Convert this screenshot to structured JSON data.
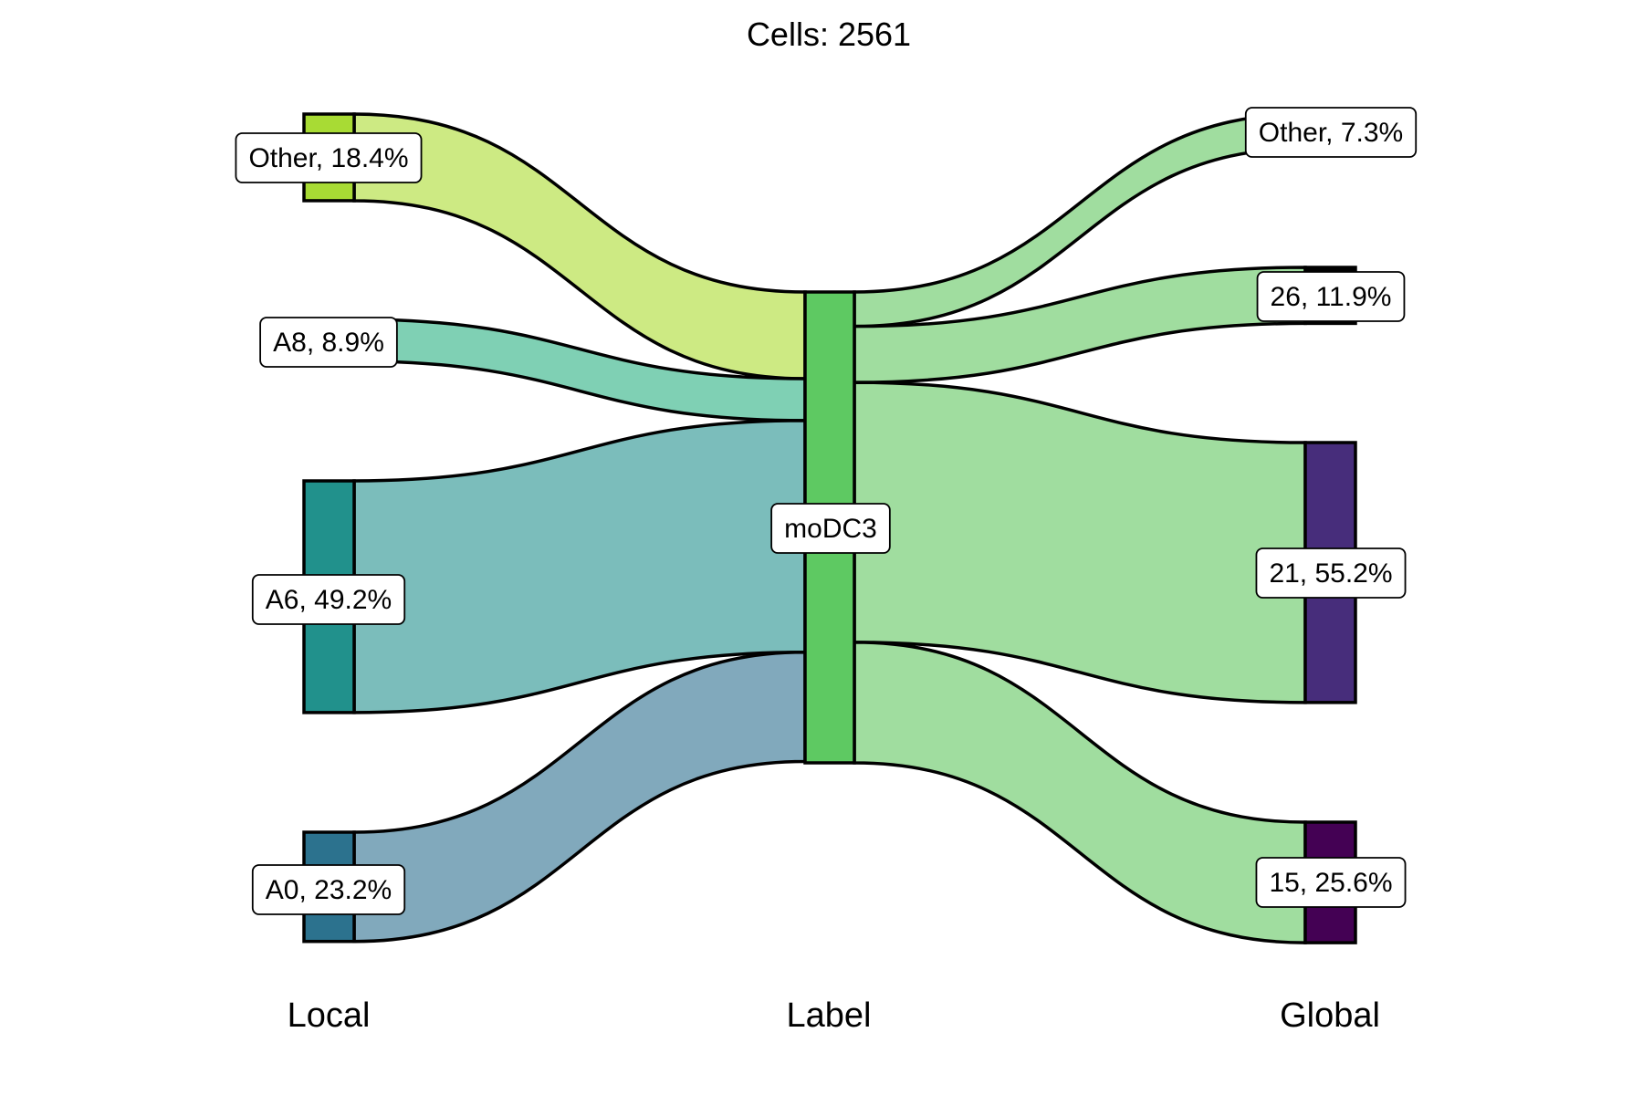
{
  "title": "Cells:  2561",
  "axes": [
    {
      "id": "local",
      "label": "Local"
    },
    {
      "id": "label",
      "label": "Label"
    },
    {
      "id": "global",
      "label": "Global"
    }
  ],
  "chart_data": {
    "type": "sankey",
    "total_cells": 2561,
    "left_nodes": [
      {
        "id": "Other",
        "label": "Other, 18.4%",
        "percent": 18.4,
        "color": "#a8db34"
      },
      {
        "id": "A8",
        "label": "A8, 8.9%",
        "percent": 8.9,
        "color": "#3bbb75"
      },
      {
        "id": "A6",
        "label": "A6, 49.2%",
        "percent": 49.2,
        "color": "#21918c"
      },
      {
        "id": "A0",
        "label": "A0, 23.2%",
        "percent": 23.2,
        "color": "#2c728e"
      }
    ],
    "center_node": {
      "id": "moDC3",
      "label": "moDC3",
      "color": "#5ec962"
    },
    "right_nodes": [
      {
        "id": "Other",
        "label": "Other, 7.3%",
        "percent": 7.3,
        "color": "#a0dd9f"
      },
      {
        "id": "26",
        "label": "26, 11.9%",
        "percent": 11.9,
        "color": "#000000"
      },
      {
        "id": "21",
        "label": "21, 55.2%",
        "percent": 55.2,
        "color": "#472d7b"
      },
      {
        "id": "15",
        "label": "15, 25.6%",
        "percent": 25.6,
        "color": "#440154"
      }
    ],
    "left_flow_colors": {
      "Other": "#cdea83",
      "A8": "#7fd0b4",
      "A6": "#7bbdbb",
      "A0": "#81a9bc"
    },
    "right_flow_color": "#a0dd9f"
  }
}
